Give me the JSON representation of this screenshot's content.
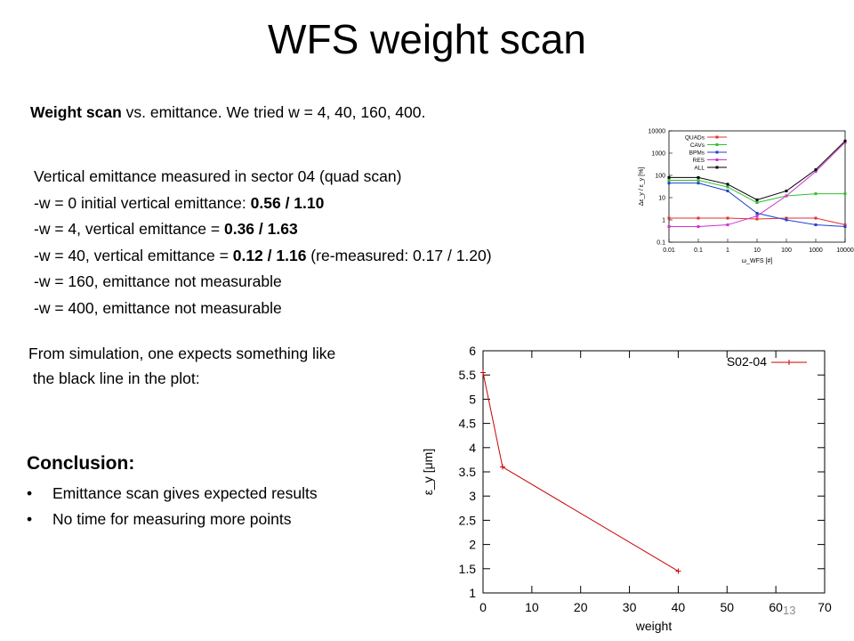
{
  "slide": {
    "title": "WFS weight scan",
    "intro_bold": "Weight scan",
    "intro_rest": " vs. emittance. We tried w = 4, 40, 160, 400.",
    "emittance_lines": [
      {
        "pre": "Vertical emittance measured in sector 04 (quad scan)",
        "bold": "",
        "post": ""
      },
      {
        "pre": "-w = 0 initial vertical emittance: ",
        "bold": "0.56 / 1.10",
        "post": ""
      },
      {
        "pre": "-w = 4, vertical emittance =  ",
        "bold": "0.36 / 1.63",
        "post": ""
      },
      {
        "pre": "-w = 40,  vertical emittance =  ",
        "bold": "0.12 / 1.16",
        "post": " (re-measured: 0.17 / 1.20)"
      },
      {
        "pre": "-w = 160, emittance not measurable",
        "bold": "",
        "post": ""
      },
      {
        "pre": "-w = 400, emittance not measurable",
        "bold": "",
        "post": ""
      }
    ],
    "simulation_line1": "From simulation, one expects something like",
    "simulation_line2": " the black line in the plot:",
    "conclusion_heading": "Conclusion:",
    "conclusion_bullets": [
      "Emittance scan gives expected results",
      "No time for measuring more points"
    ],
    "slide_number": "13"
  },
  "chart_data": [
    {
      "type": "line",
      "title": "",
      "xlabel": "ω_WFS [#]",
      "ylabel": "Δε_y / ε_y [%]",
      "x_scale": "log",
      "y_scale": "log",
      "xlim": [
        0.01,
        10000
      ],
      "ylim": [
        0.1,
        10000
      ],
      "x_ticks": [
        "0.01",
        "0.1",
        "1",
        "10",
        "100",
        "1000",
        "10000"
      ],
      "y_ticks": [
        "0.1",
        "1",
        "10",
        "100",
        "1000",
        "10000"
      ],
      "x": [
        0.01,
        0.1,
        1,
        10,
        100,
        1000,
        10000
      ],
      "legend_position": "top-left",
      "series": [
        {
          "name": "QUADs",
          "color": "#e03030",
          "values": [
            1.2,
            1.2,
            1.2,
            1.1,
            1.2,
            1.2,
            0.6
          ]
        },
        {
          "name": "CAVs",
          "color": "#30c030",
          "values": [
            60,
            60,
            30,
            6,
            12,
            15,
            15
          ]
        },
        {
          "name": "BPMs",
          "color": "#2040d0",
          "values": [
            45,
            45,
            20,
            2,
            1,
            0.6,
            0.5
          ]
        },
        {
          "name": "RES",
          "color": "#d030d0",
          "values": [
            0.5,
            0.5,
            0.6,
            1.5,
            12,
            150,
            3000
          ]
        },
        {
          "name": "ALL",
          "color": "#000000",
          "values": [
            80,
            80,
            40,
            8,
            20,
            180,
            3500
          ]
        }
      ]
    },
    {
      "type": "line",
      "title": "",
      "xlabel": "weight",
      "ylabel": "ε_y [μm]",
      "xlim": [
        0,
        70
      ],
      "ylim": [
        1,
        6
      ],
      "x_ticks": [
        "0",
        "10",
        "20",
        "30",
        "40",
        "50",
        "60",
        "70"
      ],
      "y_ticks": [
        "1",
        "1.5",
        "2",
        "2.5",
        "3",
        "3.5",
        "4",
        "4.5",
        "5",
        "5.5",
        "6"
      ],
      "legend_position": "top-right",
      "series": [
        {
          "name": "S02-04",
          "color": "#cc0000",
          "x": [
            0,
            4,
            40
          ],
          "values": [
            5.55,
            3.6,
            1.45
          ]
        }
      ]
    }
  ]
}
